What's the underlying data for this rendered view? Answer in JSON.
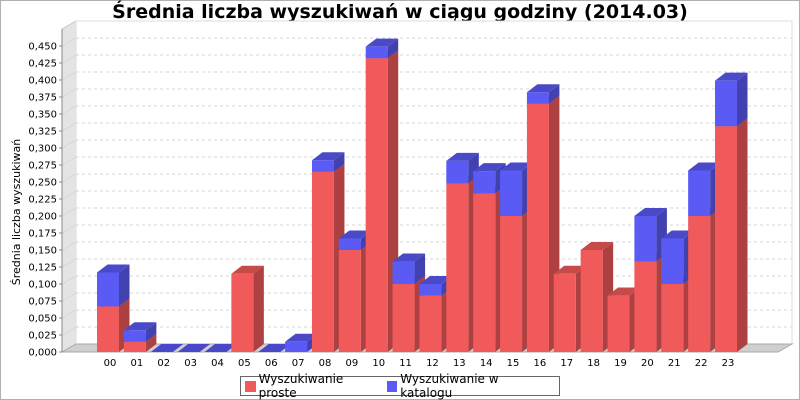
{
  "chart_data": {
    "type": "bar",
    "stacked": true,
    "three_d": true,
    "title": "Średnia liczba wyszukiwań w ciągu godziny (2014.03)",
    "ylabel": "Średnia liczba wyszukiwań",
    "xlabel": "",
    "ylim": [
      0,
      0.475
    ],
    "y_ticks": [
      "0,000",
      "0,025",
      "0,050",
      "0,075",
      "0,100",
      "0,125",
      "0,150",
      "0,175",
      "0,200",
      "0,225",
      "0,250",
      "0,275",
      "0,300",
      "0,325",
      "0,350",
      "0,375",
      "0,400",
      "0,425",
      "0,450"
    ],
    "categories": [
      "00",
      "01",
      "02",
      "03",
      "04",
      "05",
      "06",
      "07",
      "08",
      "09",
      "10",
      "11",
      "12",
      "13",
      "14",
      "15",
      "16",
      "17",
      "18",
      "19",
      "20",
      "21",
      "22",
      "23"
    ],
    "series": [
      {
        "name": "Wyszukiwanie proste",
        "color": "#f05a5a",
        "values": [
          0.067,
          0.015,
          0,
          0,
          0,
          0.115,
          0,
          0,
          0.265,
          0.15,
          0.432,
          0.1,
          0.083,
          0.248,
          0.233,
          0.2,
          0.365,
          0.115,
          0.15,
          0.083,
          0.133,
          0.1,
          0.2,
          0.332
        ]
      },
      {
        "name": "Wyszukiwanie w katalogu",
        "color": "#5a5af5",
        "values": [
          0.05,
          0.017,
          0,
          0,
          0,
          0,
          0,
          0.015,
          0.017,
          0.017,
          0.017,
          0.033,
          0.017,
          0.033,
          0.033,
          0.067,
          0.017,
          0,
          0,
          0,
          0.067,
          0.067,
          0.067,
          0.067
        ]
      }
    ],
    "grid": true,
    "legend_position": "bottom"
  }
}
